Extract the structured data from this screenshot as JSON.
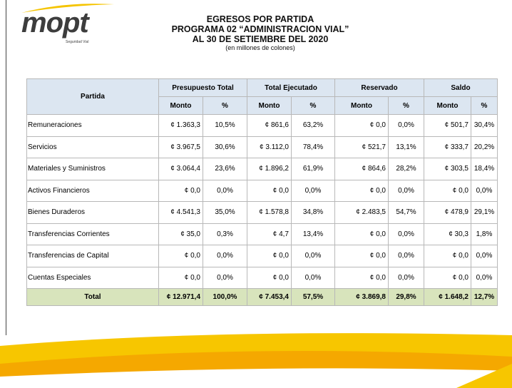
{
  "header": {
    "logo": "mopt",
    "logo_sub": "Seguridad Vial",
    "title_lines": [
      "EGRESOS POR PARTIDA",
      "PROGRAMA 02 “ADMINISTRACION VIAL”",
      "AL 30 DE SETIEMBRE DEL 2020"
    ],
    "subtitle": "(en millones de colones)"
  },
  "table": {
    "first_header": "Partida",
    "groups": [
      "Presupuesto Total",
      "Total Ejecutado",
      "Reservado",
      "Saldo"
    ],
    "subheaders": [
      "Monto",
      "%",
      "Monto",
      "%",
      "Monto",
      "%",
      "Monto",
      "%"
    ],
    "rows": [
      [
        "Remuneraciones",
        "¢ 1.363,3",
        "10,5%",
        "¢ 861,6",
        "63,2%",
        "¢ 0,0",
        "0,0%",
        "¢ 501,7",
        "30,4%"
      ],
      [
        "Servicios",
        "¢ 3.967,5",
        "30,6%",
        "¢ 3.112,0",
        "78,4%",
        "¢ 521,7",
        "13,1%",
        "¢ 333,7",
        "20,2%"
      ],
      [
        "Materiales y Suministros",
        "¢ 3.064,4",
        "23,6%",
        "¢ 1.896,2",
        "61,9%",
        "¢ 864,6",
        "28,2%",
        "¢ 303,5",
        "18,4%"
      ],
      [
        "Activos Financieros",
        "¢ 0,0",
        "0,0%",
        "¢ 0,0",
        "0,0%",
        "¢ 0,0",
        "0,0%",
        "¢ 0,0",
        "0,0%"
      ],
      [
        "Bienes Duraderos",
        "¢ 4.541,3",
        "35,0%",
        "¢ 1.578,8",
        "34,8%",
        "¢ 2.483,5",
        "54,7%",
        "¢ 478,9",
        "29,1%"
      ],
      [
        "Transferencias Corrientes",
        "¢ 35,0",
        "0,3%",
        "¢ 4,7",
        "13,4%",
        "¢ 0,0",
        "0,0%",
        "¢ 30,3",
        "1,8%"
      ],
      [
        "Transferencias de Capital",
        "¢ 0,0",
        "0,0%",
        "¢ 0,0",
        "0,0%",
        "¢ 0,0",
        "0,0%",
        "¢ 0,0",
        "0,0%"
      ],
      [
        "Cuentas Especiales",
        "¢ 0,0",
        "0,0%",
        "¢ 0,0",
        "0,0%",
        "¢ 0,0",
        "0,0%",
        "¢ 0,0",
        "0,0%"
      ]
    ],
    "total": [
      "Total",
      "¢ 12.971,4",
      "100,0%",
      "¢ 7.453,4",
      "57,5%",
      "¢ 3.869,8",
      "29,8%",
      "¢ 1.648,2",
      "12,7%"
    ]
  }
}
